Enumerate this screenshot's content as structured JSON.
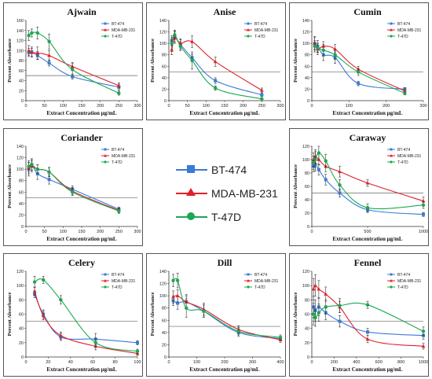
{
  "colors": {
    "BT-474": "#3a7bd5",
    "MDA-MB-231": "#e0202a",
    "T-47D": "#1aa851"
  },
  "center_legend": [
    {
      "label": "BT-474",
      "color": "#3a7bd5",
      "marker": "square"
    },
    {
      "label": "MDA-MB-231",
      "color": "#e0202a",
      "marker": "triangle"
    },
    {
      "label": "T-47D",
      "color": "#1aa851",
      "marker": "circle"
    }
  ],
  "chart_data": [
    {
      "type": "line",
      "title": "Ajwain",
      "xlabel": "Extract Concentration µg/mL",
      "ylabel": "Percent Absorbance",
      "xlim": [
        0,
        300
      ],
      "ylim": [
        0,
        160
      ],
      "xticks": [
        0,
        50,
        100,
        150,
        200,
        250,
        300
      ],
      "yticks": [
        0,
        20,
        40,
        60,
        80,
        100,
        120,
        140,
        160
      ],
      "hline": 50,
      "legend": "top-right",
      "series": [
        {
          "name": "BT-474",
          "x": [
            7.8,
            15.6,
            31.25,
            62.5,
            125,
            250
          ],
          "y": [
            96,
            97,
            90,
            75,
            48,
            27
          ],
          "err": [
            8,
            10,
            8,
            6,
            5,
            6
          ]
        },
        {
          "name": "MDA-MB-231",
          "x": [
            7.8,
            15.6,
            31.25,
            62.5,
            125,
            250
          ],
          "y": [
            100,
            96,
            95,
            90,
            68,
            30
          ],
          "err": [
            10,
            8,
            12,
            10,
            8,
            5
          ]
        },
        {
          "name": "T-47D",
          "x": [
            7.8,
            15.6,
            31.25,
            62.5,
            125,
            250
          ],
          "y": [
            130,
            135,
            135,
            118,
            62,
            15
          ],
          "err": [
            10,
            8,
            12,
            15,
            12,
            4
          ]
        }
      ]
    },
    {
      "type": "line",
      "title": "Anise",
      "xlabel": "Extract Concentration µg/mL",
      "ylabel": "Percent Absorbance",
      "xlim": [
        0,
        300
      ],
      "ylim": [
        0,
        140
      ],
      "xticks": [
        0,
        50,
        100,
        150,
        200,
        250,
        300
      ],
      "yticks": [
        0,
        20,
        40,
        60,
        80,
        100,
        120,
        140
      ],
      "hline": 50,
      "legend": "top-right",
      "series": [
        {
          "name": "BT-474",
          "x": [
            7.8,
            15.6,
            31.25,
            62.5,
            125,
            250
          ],
          "y": [
            105,
            112,
            98,
            75,
            35,
            10
          ],
          "err": [
            8,
            10,
            8,
            6,
            5,
            3
          ]
        },
        {
          "name": "MDA-MB-231",
          "x": [
            7.8,
            15.6,
            31.25,
            62.5,
            125,
            250
          ],
          "y": [
            88,
            110,
            100,
            103,
            68,
            18
          ],
          "err": [
            8,
            10,
            8,
            10,
            8,
            4
          ]
        },
        {
          "name": "T-47D",
          "x": [
            7.8,
            15.6,
            31.25,
            62.5,
            125,
            250
          ],
          "y": [
            100,
            115,
            95,
            70,
            22,
            3
          ],
          "err": [
            10,
            8,
            8,
            15,
            4,
            2
          ]
        }
      ]
    },
    {
      "type": "line",
      "title": "Cumin",
      "xlabel": "Extract Concentration µg/mL",
      "ylabel": "Percent Absorbance",
      "xlim": [
        0,
        300
      ],
      "ylim": [
        0,
        140
      ],
      "xticks": [
        0,
        100,
        200,
        300
      ],
      "yticks": [
        0,
        20,
        40,
        60,
        80,
        100,
        120,
        140
      ],
      "hline": 50,
      "legend": "top-right",
      "series": [
        {
          "name": "BT-474",
          "x": [
            7.8,
            15.6,
            31.25,
            62.5,
            125,
            250
          ],
          "y": [
            100,
            95,
            80,
            75,
            30,
            20
          ],
          "err": [
            12,
            10,
            10,
            10,
            4,
            3
          ]
        },
        {
          "name": "MDA-MB-231",
          "x": [
            7.8,
            15.6,
            31.25,
            62.5,
            125,
            250
          ],
          "y": [
            100,
            90,
            95,
            90,
            55,
            17
          ],
          "err": [
            10,
            10,
            8,
            8,
            5,
            3
          ]
        },
        {
          "name": "T-47D",
          "x": [
            7.8,
            15.6,
            31.25,
            62.5,
            125,
            250
          ],
          "y": [
            95,
            92,
            88,
            80,
            50,
            13
          ],
          "err": [
            10,
            8,
            10,
            8,
            6,
            3
          ]
        }
      ]
    },
    {
      "type": "line",
      "title": "Coriander",
      "xlabel": "Extract Concentration µg/mL",
      "ylabel": "Percent Absorbance",
      "xlim": [
        0,
        300
      ],
      "ylim": [
        0,
        140
      ],
      "xticks": [
        0,
        50,
        100,
        150,
        200,
        250,
        300
      ],
      "yticks": [
        0,
        20,
        40,
        60,
        80,
        100,
        120,
        140
      ],
      "hline": 50,
      "legend": "top-right",
      "series": [
        {
          "name": "BT-474",
          "x": [
            7.8,
            15.6,
            31.25,
            62.5,
            125,
            250
          ],
          "y": [
            100,
            108,
            92,
            82,
            65,
            30
          ],
          "err": [
            12,
            10,
            10,
            8,
            6,
            4
          ]
        },
        {
          "name": "MDA-MB-231",
          "x": [
            7.8,
            15.6,
            31.25,
            62.5,
            125,
            250
          ],
          "y": [
            102,
            105,
            100,
            95,
            62,
            28
          ],
          "err": [
            10,
            10,
            8,
            8,
            6,
            4
          ]
        },
        {
          "name": "T-47D",
          "x": [
            7.8,
            15.6,
            31.25,
            62.5,
            125,
            250
          ],
          "y": [
            105,
            108,
            100,
            95,
            60,
            27
          ],
          "err": [
            10,
            10,
            8,
            8,
            6,
            4
          ]
        }
      ]
    },
    {
      "type": "line",
      "title": "Caraway",
      "xlabel": "Extract Concentration µg/mL",
      "ylabel": "Percent Absorbance",
      "xlim": [
        0,
        1000
      ],
      "ylim": [
        0,
        120
      ],
      "xticks": [
        0,
        500,
        1000
      ],
      "yticks": [
        0,
        20,
        40,
        60,
        80,
        100,
        120
      ],
      "hline": 50,
      "legend": "top-right",
      "series": [
        {
          "name": "BT-474",
          "x": [
            15.6,
            31.25,
            62.5,
            125,
            250,
            500,
            1000
          ],
          "y": [
            90,
            93,
            85,
            70,
            50,
            25,
            18
          ],
          "err": [
            8,
            10,
            8,
            8,
            6,
            4,
            3
          ]
        },
        {
          "name": "MDA-MB-231",
          "x": [
            15.6,
            31.25,
            62.5,
            125,
            250,
            500,
            1000
          ],
          "y": [
            100,
            105,
            100,
            90,
            82,
            65,
            38
          ],
          "err": [
            10,
            10,
            8,
            8,
            8,
            5,
            6
          ]
        },
        {
          "name": "T-47D",
          "x": [
            15.6,
            31.25,
            62.5,
            125,
            250,
            500,
            1000
          ],
          "y": [
            95,
            100,
            110,
            98,
            62,
            28,
            32
          ],
          "err": [
            10,
            12,
            10,
            10,
            8,
            6,
            5
          ]
        }
      ]
    },
    {
      "type": "line",
      "title": "Celery",
      "xlabel": "Extract Concentration µg/mL",
      "ylabel": "Percent Absorbance",
      "xlim": [
        0,
        100
      ],
      "ylim": [
        0,
        120
      ],
      "xticks": [
        0,
        20,
        40,
        60,
        80,
        100
      ],
      "yticks": [
        0,
        20,
        40,
        60,
        80,
        100,
        120
      ],
      "hline": 50,
      "legend": "top-right",
      "series": [
        {
          "name": "BT-474",
          "x": [
            7.8,
            15.6,
            31.25,
            62.5,
            100
          ],
          "y": [
            88,
            60,
            28,
            25,
            20
          ],
          "err": [
            5,
            6,
            5,
            8,
            3
          ]
        },
        {
          "name": "MDA-MB-231",
          "x": [
            7.8,
            15.6,
            31.25,
            62.5,
            100
          ],
          "y": [
            92,
            58,
            30,
            15,
            5
          ],
          "err": [
            6,
            6,
            5,
            5,
            3
          ]
        },
        {
          "name": "T-47D",
          "x": [
            7.8,
            15.6,
            31.25,
            62.5,
            100
          ],
          "y": [
            105,
            108,
            80,
            20,
            8
          ],
          "err": [
            8,
            5,
            6,
            6,
            3
          ]
        }
      ]
    },
    {
      "type": "line",
      "title": "Dill",
      "xlabel": "Extract Concentration µg/mL",
      "ylabel": "Percent Absorbance",
      "xlim": [
        0,
        400
      ],
      "ylim": [
        0,
        140
      ],
      "xticks": [
        0,
        100,
        200,
        300,
        400
      ],
      "yticks": [
        0,
        20,
        40,
        60,
        80,
        100,
        120,
        140
      ],
      "hline": 50,
      "legend": "top-right",
      "series": [
        {
          "name": "BT-474",
          "x": [
            15.6,
            31.25,
            62.5,
            125,
            250,
            400
          ],
          "y": [
            92,
            88,
            90,
            75,
            40,
            30
          ],
          "err": [
            8,
            10,
            10,
            10,
            6,
            4
          ]
        },
        {
          "name": "MDA-MB-231",
          "x": [
            15.6,
            31.25,
            62.5,
            125,
            250,
            400
          ],
          "y": [
            98,
            100,
            90,
            78,
            45,
            28
          ],
          "err": [
            10,
            10,
            12,
            10,
            6,
            4
          ]
        },
        {
          "name": "T-47D",
          "x": [
            15.6,
            31.25,
            62.5,
            125,
            250,
            400
          ],
          "y": [
            125,
            125,
            80,
            75,
            42,
            32
          ],
          "err": [
            10,
            12,
            15,
            10,
            6,
            4
          ]
        }
      ]
    },
    {
      "type": "line",
      "title": "Fennel",
      "xlabel": "Extract Concentration µg/mL",
      "ylabel": "Percent Absorbance",
      "xlim": [
        0,
        1000
      ],
      "ylim": [
        0,
        120
      ],
      "xticks": [
        0,
        200,
        400,
        600,
        800,
        1000
      ],
      "yticks": [
        0,
        20,
        40,
        60,
        80,
        100,
        120
      ],
      "hline": 50,
      "legend": "top-right",
      "series": [
        {
          "name": "BT-474",
          "x": [
            15.6,
            31.25,
            62.5,
            125,
            250,
            500,
            1000
          ],
          "y": [
            70,
            65,
            70,
            62,
            50,
            35,
            30
          ],
          "err": [
            15,
            15,
            12,
            10,
            8,
            5,
            5
          ]
        },
        {
          "name": "MDA-MB-231",
          "x": [
            15.6,
            31.25,
            62.5,
            125,
            250,
            500,
            1000
          ],
          "y": [
            95,
            100,
            95,
            88,
            70,
            25,
            15
          ],
          "err": [
            15,
            15,
            12,
            10,
            8,
            5,
            4
          ]
        },
        {
          "name": "T-47D",
          "x": [
            15.6,
            31.25,
            62.5,
            125,
            250,
            500,
            1000
          ],
          "y": [
            60,
            55,
            62,
            70,
            72,
            73,
            36
          ],
          "err": [
            15,
            12,
            12,
            10,
            10,
            5,
            6
          ]
        }
      ]
    }
  ]
}
